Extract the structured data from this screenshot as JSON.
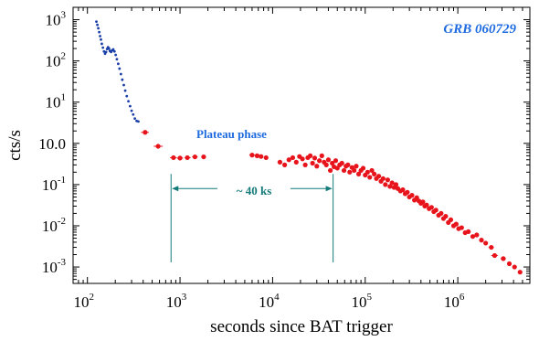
{
  "chart_data": {
    "type": "scatter",
    "title": "GRB 060729",
    "xlabel": "seconds since BAT trigger",
    "ylabel": "cts/s",
    "xscale": "log",
    "yscale": "log",
    "xlim": [
      70,
      6000000
    ],
    "ylim": [
      0.0004,
      2000
    ],
    "x_ticks": [
      {
        "value": 100,
        "base": "10",
        "exp": "2"
      },
      {
        "value": 1000,
        "base": "10",
        "exp": "3"
      },
      {
        "value": 10000,
        "base": "10",
        "exp": "4"
      },
      {
        "value": 100000,
        "base": "10",
        "exp": "5"
      },
      {
        "value": 1000000,
        "base": "10",
        "exp": "6"
      }
    ],
    "y_ticks": [
      {
        "value": 0.001,
        "base": "10",
        "exp": "-3"
      },
      {
        "value": 0.01,
        "base": "10",
        "exp": "-2"
      },
      {
        "value": 0.1,
        "base": "10",
        "exp": "-1"
      },
      {
        "value": 1,
        "label": "10.0"
      },
      {
        "value": 10,
        "base": "10",
        "exp": "1"
      },
      {
        "value": 100,
        "base": "10",
        "exp": "2"
      },
      {
        "value": 1000,
        "base": "10",
        "exp": "3"
      }
    ],
    "grid": false,
    "annotations": {
      "plateau_label": "Plateau phase",
      "interval_label": "~ 40 ks",
      "interval_start": 800,
      "interval_end": 45000,
      "interval_level": 0.08,
      "marker_bottom": 0.0013
    },
    "series": [
      {
        "color": "#1a3ea8",
        "style": "dots",
        "points": [
          [
            125,
            900
          ],
          [
            128,
            750
          ],
          [
            131,
            620
          ],
          [
            134,
            500
          ],
          [
            137,
            400
          ],
          [
            140,
            330
          ],
          [
            143,
            260
          ],
          [
            147,
            210
          ],
          [
            151,
            170
          ],
          [
            155,
            150
          ],
          [
            159,
            165
          ],
          [
            163,
            195
          ],
          [
            167,
            215
          ],
          [
            171,
            200
          ],
          [
            175,
            175
          ],
          [
            180,
            165
          ],
          [
            185,
            180
          ],
          [
            190,
            190
          ],
          [
            196,
            170
          ],
          [
            202,
            140
          ],
          [
            208,
            110
          ],
          [
            215,
            85
          ],
          [
            222,
            65
          ],
          [
            230,
            48
          ],
          [
            238,
            35
          ],
          [
            247,
            26
          ],
          [
            256,
            19
          ],
          [
            266,
            14
          ],
          [
            277,
            10.5
          ],
          [
            289,
            8
          ],
          [
            300,
            6.2
          ],
          [
            312,
            5
          ],
          [
            325,
            4
          ],
          [
            340,
            3.5
          ],
          [
            355,
            3.4
          ]
        ]
      },
      {
        "color": "#e8141c",
        "style": "errorbars",
        "points": [
          [
            420,
            1.85,
            380,
            460
          ],
          [
            580,
            0.85,
            520,
            650
          ],
          [
            850,
            0.45,
            780,
            920
          ],
          [
            1000,
            0.44,
            930,
            1080
          ],
          [
            1200,
            0.45,
            1120,
            1300
          ],
          [
            1450,
            0.47,
            1350,
            1550
          ],
          [
            1800,
            0.47,
            1700,
            1900
          ],
          [
            6000,
            0.52,
            5600,
            6400
          ],
          [
            6800,
            0.5,
            6400,
            7200
          ],
          [
            7500,
            0.48,
            7100,
            7900
          ],
          [
            8500,
            0.45,
            8100,
            8900
          ],
          [
            12000,
            0.35,
            11300,
            12700
          ],
          [
            13500,
            0.3,
            12800,
            14200
          ],
          [
            15000,
            0.4,
            14300,
            15700
          ],
          [
            16500,
            0.45,
            15800,
            17200
          ],
          [
            18000,
            0.35,
            17200,
            18800
          ],
          [
            19500,
            0.48,
            18700,
            20300
          ],
          [
            21000,
            0.42,
            20200,
            21800
          ],
          [
            22500,
            0.3,
            21700,
            23300
          ],
          [
            24000,
            0.45,
            23200,
            24800
          ],
          [
            25500,
            0.5,
            24700,
            26300
          ],
          [
            27000,
            0.33,
            26200,
            27800
          ],
          [
            28500,
            0.44,
            27700,
            29300
          ],
          [
            30000,
            0.28,
            29200,
            30800
          ],
          [
            32000,
            0.38,
            31000,
            33000
          ],
          [
            34000,
            0.5,
            33000,
            35000
          ],
          [
            36000,
            0.35,
            35000,
            37000
          ],
          [
            38000,
            0.3,
            37000,
            39000
          ],
          [
            40000,
            0.4,
            39000,
            41000
          ],
          [
            42000,
            0.22,
            41000,
            43000
          ],
          [
            44000,
            0.33,
            43000,
            45000
          ],
          [
            46000,
            0.27,
            45000,
            47000
          ],
          [
            48000,
            0.38,
            47000,
            49000
          ],
          [
            50000,
            0.25,
            49000,
            51000
          ],
          [
            53000,
            0.3,
            51500,
            54500
          ],
          [
            56000,
            0.33,
            54500,
            57500
          ],
          [
            59000,
            0.22,
            57500,
            60500
          ],
          [
            62000,
            0.28,
            60500,
            63500
          ],
          [
            65000,
            0.3,
            63500,
            66500
          ],
          [
            68000,
            0.2,
            66500,
            69500
          ],
          [
            72000,
            0.26,
            70000,
            74000
          ],
          [
            76000,
            0.22,
            74000,
            78000
          ],
          [
            80000,
            0.28,
            78000,
            82000
          ],
          [
            85000,
            0.18,
            83000,
            87000
          ],
          [
            90000,
            0.22,
            87500,
            92500
          ],
          [
            95000,
            0.25,
            92500,
            97500
          ],
          [
            100000,
            0.17,
            97000,
            103000
          ],
          [
            106000,
            0.2,
            103000,
            109000
          ],
          [
            112000,
            0.15,
            109000,
            115000
          ],
          [
            118000,
            0.22,
            115000,
            121000
          ],
          [
            125000,
            0.18,
            121000,
            129000
          ],
          [
            132000,
            0.14,
            128000,
            136000
          ],
          [
            140000,
            0.16,
            136000,
            144000
          ],
          [
            148000,
            0.12,
            144000,
            152000
          ],
          [
            156000,
            0.14,
            152000,
            160000
          ],
          [
            165000,
            0.1,
            160000,
            170000
          ],
          [
            175000,
            0.13,
            170000,
            180000
          ],
          [
            185000,
            0.09,
            180000,
            190000
          ],
          [
            195000,
            0.11,
            190000,
            200000
          ],
          [
            205000,
            0.085,
            200000,
            210000
          ],
          [
            215000,
            0.1,
            210000,
            220000
          ],
          [
            225000,
            0.08,
            220000,
            230000
          ],
          [
            240000,
            0.07,
            233000,
            247000
          ],
          [
            255000,
            0.075,
            248000,
            262000
          ],
          [
            270000,
            0.06,
            262000,
            278000
          ],
          [
            285000,
            0.065,
            277000,
            293000
          ],
          [
            300000,
            0.05,
            292000,
            308000
          ],
          [
            320000,
            0.055,
            311000,
            329000
          ],
          [
            340000,
            0.042,
            330000,
            350000
          ],
          [
            360000,
            0.048,
            350000,
            370000
          ],
          [
            380000,
            0.04,
            370000,
            390000
          ],
          [
            400000,
            0.035,
            390000,
            410000
          ],
          [
            420000,
            0.038,
            410000,
            430000
          ],
          [
            440000,
            0.03,
            430000,
            450000
          ],
          [
            460000,
            0.032,
            450000,
            470000
          ],
          [
            490000,
            0.026,
            475000,
            505000
          ],
          [
            520000,
            0.028,
            505000,
            535000
          ],
          [
            550000,
            0.022,
            535000,
            565000
          ],
          [
            580000,
            0.024,
            565000,
            595000
          ],
          [
            620000,
            0.018,
            600000,
            640000
          ],
          [
            660000,
            0.02,
            640000,
            680000
          ],
          [
            700000,
            0.015,
            680000,
            720000
          ],
          [
            740000,
            0.017,
            720000,
            760000
          ],
          [
            790000,
            0.012,
            760000,
            820000
          ],
          [
            840000,
            0.014,
            810000,
            870000
          ],
          [
            900000,
            0.01,
            870000,
            930000
          ],
          [
            960000,
            0.011,
            930000,
            990000
          ],
          [
            1020000,
            0.0085,
            990000,
            1050000
          ],
          [
            1100000,
            0.009,
            1060000,
            1140000
          ],
          [
            1200000,
            0.0068,
            1150000,
            1250000
          ],
          [
            1300000,
            0.0072,
            1250000,
            1350000
          ],
          [
            1450000,
            0.0055,
            1390000,
            1510000
          ],
          [
            1600000,
            0.006,
            1530000,
            1670000
          ],
          [
            1800000,
            0.0045,
            1700000,
            1900000
          ],
          [
            2000000,
            0.0038,
            1900000,
            2100000
          ],
          [
            2300000,
            0.003,
            2150000,
            2450000
          ],
          [
            2500000,
            0.0019,
            2300000,
            2700000
          ],
          [
            3100000,
            0.0016,
            2900000,
            3300000
          ],
          [
            3600000,
            0.0012,
            3400000,
            3800000
          ],
          [
            4100000,
            0.001,
            3900000,
            4300000
          ],
          [
            4700000,
            0.00075,
            4500000,
            4900000
          ]
        ]
      }
    ]
  }
}
